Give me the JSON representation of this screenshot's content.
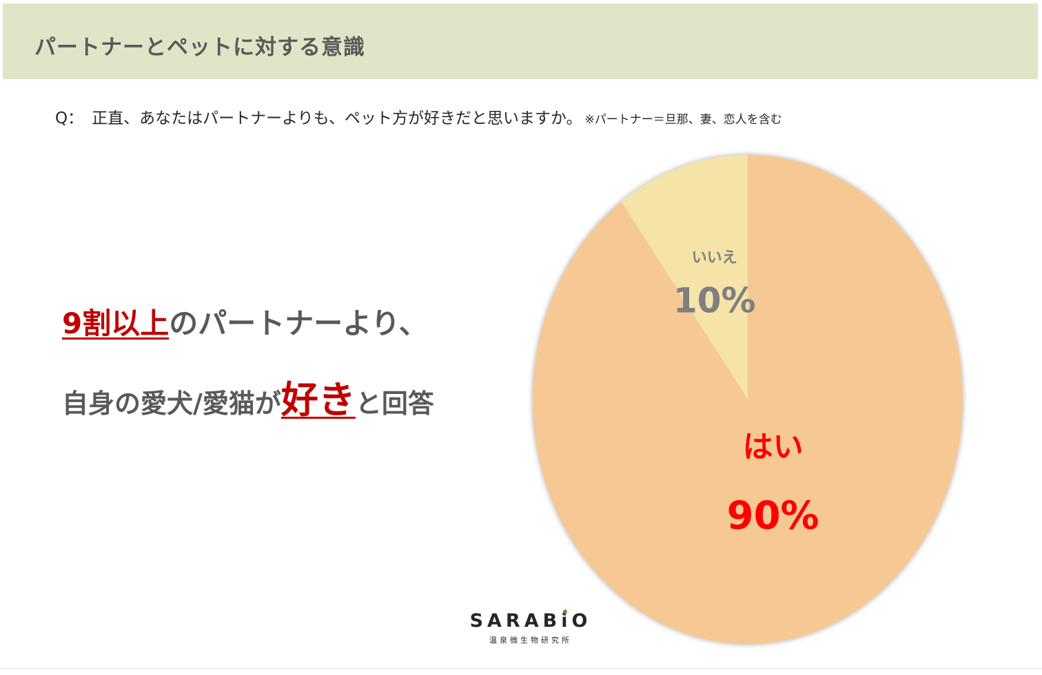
{
  "header": {
    "title": "パートナーとペットに対する意識"
  },
  "question": {
    "prefix": "Q：",
    "text": "正直、あなたはパートナーよりも、ペット方が好きだと思いますか。",
    "note": "※パートナー＝旦那、妻、恋人を含む"
  },
  "headline": {
    "line1_emph": "9割以上",
    "line1_rest": "のパートナーより、",
    "line2_pre": "自身の愛犬/愛猫が",
    "line2_emph": "好き",
    "line2_post": "と回答"
  },
  "logo": {
    "name_pre": "SARAB",
    "name_i": "i",
    "name_post": "O",
    "tagline": "温泉微生物研究所"
  },
  "chart_data": {
    "type": "pie",
    "title": "",
    "categories": [
      "はい",
      "いいえ"
    ],
    "values": [
      90,
      10
    ],
    "labels": [
      "90%",
      "10%"
    ],
    "colors": [
      "#f5c894",
      "#f5e3a8"
    ],
    "label_colors": [
      "#ff0000",
      "#7f7f7f"
    ],
    "start_angle_deg": 0,
    "direction": "clockwise"
  }
}
